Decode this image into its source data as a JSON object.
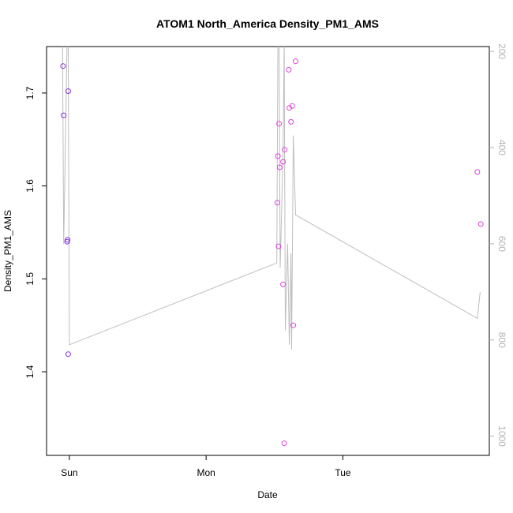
{
  "chart_data": {
    "type": "scatter",
    "title": "ATOM1 North_America Density_PM1_AMS",
    "xlabel": "Date",
    "ylabel": "Density_PM1_AMS",
    "x_ticks": [
      {
        "t": 24.0,
        "label": "Sun"
      },
      {
        "t": 48.0,
        "label": "Mon"
      },
      {
        "t": 72.0,
        "label": "Tue"
      }
    ],
    "xlim": [
      20.0,
      97.7
    ],
    "ylim": [
      1.31,
      1.75
    ],
    "y_ticks": [
      1.4,
      1.5,
      1.6,
      1.7
    ],
    "y_right_lim": [
      1040,
      190
    ],
    "y_right_ticks": [
      200,
      400,
      600,
      800,
      1000
    ],
    "colors": {
      "line": "#bebebe",
      "right_axis": "#b3b3b3"
    },
    "series": [
      {
        "type": "points",
        "axis": "left",
        "points": [
          {
            "t": 22.9,
            "v": 1.729,
            "color": "#8a2be2"
          },
          {
            "t": 23.0,
            "v": 1.676,
            "color": "#8a2be2"
          },
          {
            "t": 23.6,
            "v": 1.54,
            "color": "#8a2be2"
          },
          {
            "t": 23.7,
            "v": 1.542,
            "color": "#8a2be2"
          },
          {
            "t": 23.8,
            "v": 1.702,
            "color": "#8a2be2"
          },
          {
            "t": 23.8,
            "v": 1.419,
            "color": "#8a2be2"
          },
          {
            "t": 60.5,
            "v": 1.582,
            "color": "#e040e0"
          },
          {
            "t": 60.6,
            "v": 1.632,
            "color": "#e040e0"
          },
          {
            "t": 60.7,
            "v": 1.535,
            "color": "#e040e0"
          },
          {
            "t": 60.8,
            "v": 1.667,
            "color": "#e040e0"
          },
          {
            "t": 60.9,
            "v": 1.62,
            "color": "#e040e0"
          },
          {
            "t": 61.5,
            "v": 1.626,
            "color": "#e040e0"
          },
          {
            "t": 61.5,
            "v": 1.494,
            "color": "#e040e0"
          },
          {
            "t": 61.7,
            "v": 1.323,
            "color": "#e040e0"
          },
          {
            "t": 61.8,
            "v": 1.639,
            "color": "#e040e0"
          },
          {
            "t": 62.5,
            "v": 1.725,
            "color": "#e040e0"
          },
          {
            "t": 62.6,
            "v": 1.684,
            "color": "#e040e0"
          },
          {
            "t": 62.9,
            "v": 1.669,
            "color": "#e040e0"
          },
          {
            "t": 63.1,
            "v": 1.686,
            "color": "#e040e0"
          },
          {
            "t": 63.3,
            "v": 1.45,
            "color": "#e040e0"
          },
          {
            "t": 63.7,
            "v": 1.734,
            "color": "#e040e0"
          },
          {
            "t": 95.6,
            "v": 1.615,
            "color": "#e040e0"
          },
          {
            "t": 96.2,
            "v": 1.559,
            "color": "#e040e0"
          }
        ]
      },
      {
        "type": "line",
        "axis": "right",
        "points": [
          {
            "t": 22.8,
            "v": 180
          },
          {
            "t": 23.0,
            "v": 600
          },
          {
            "t": 23.4,
            "v": 330
          },
          {
            "t": 23.6,
            "v": 180
          },
          {
            "t": 23.8,
            "v": 180
          },
          {
            "t": 24.0,
            "v": 810
          },
          {
            "t": 60.4,
            "v": 640
          },
          {
            "t": 60.6,
            "v": 180
          },
          {
            "t": 60.8,
            "v": 180
          },
          {
            "t": 61.0,
            "v": 650
          },
          {
            "t": 61.5,
            "v": 420
          },
          {
            "t": 61.7,
            "v": 180
          },
          {
            "t": 61.9,
            "v": 780
          },
          {
            "t": 62.3,
            "v": 600
          },
          {
            "t": 62.6,
            "v": 810
          },
          {
            "t": 62.9,
            "v": 620
          },
          {
            "t": 63.0,
            "v": 820
          },
          {
            "t": 63.3,
            "v": 375
          },
          {
            "t": 63.7,
            "v": 540
          },
          {
            "t": 95.6,
            "v": 755
          },
          {
            "t": 96.1,
            "v": 700
          }
        ]
      }
    ]
  }
}
